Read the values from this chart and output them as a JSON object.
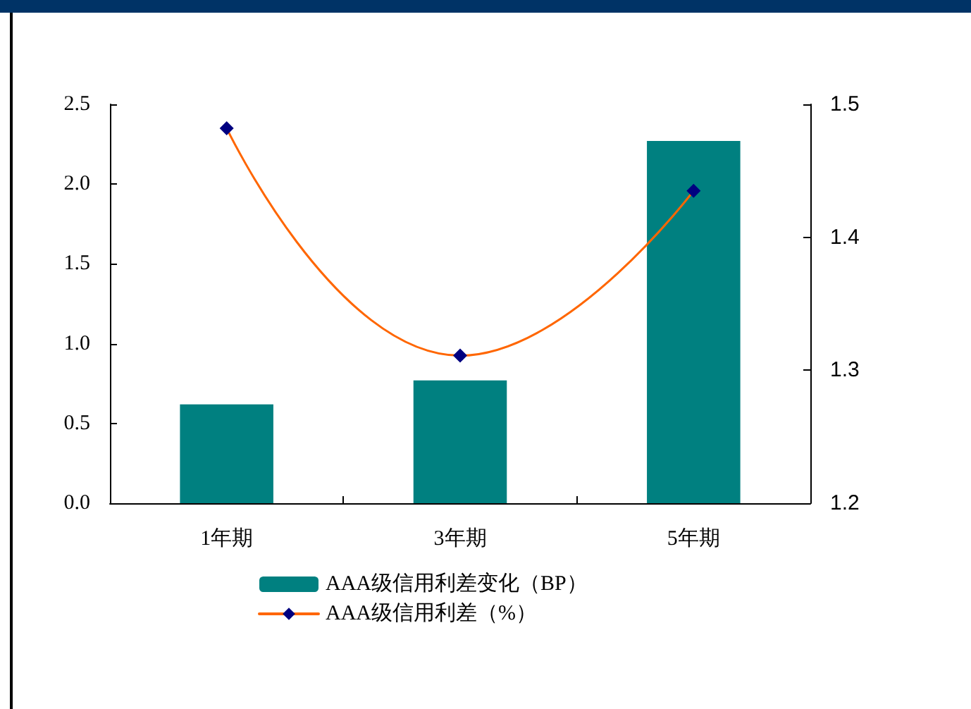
{
  "chart_data": {
    "type": "bar",
    "categories": [
      "1年期",
      "3年期",
      "5年期"
    ],
    "series": [
      {
        "name": "AAA级信用利差变化（BP）",
        "color": "#008080",
        "values": [
          0.62,
          0.77,
          2.27
        ]
      },
      {
        "name": "AAA级信用利差（%）",
        "type": "line",
        "axis": "y2",
        "color": "#ff6600",
        "colors": [
          "#000080",
          "#000080",
          "#000080"
        ],
        "values": [
          1.482,
          1.311,
          1.435
        ]
      }
    ],
    "ylim": [
      0,
      2.5
    ],
    "yticks": [
      {
        "value": 0,
        "label": "0.0"
      },
      {
        "value": 0.5,
        "label": "0.5"
      },
      {
        "value": 1,
        "label": "1.0"
      },
      {
        "value": 1.5,
        "label": "1.5"
      },
      {
        "value": 2,
        "label": "2.0"
      },
      {
        "value": 2.5,
        "label": "2.5"
      }
    ],
    "y2lim": [
      1.2,
      1.5
    ],
    "y2ticks": [
      1.2,
      1.3,
      1.4,
      1.5
    ],
    "marker": "diamond",
    "line_style": "solid",
    "grid": false,
    "legend": "bottom"
  }
}
